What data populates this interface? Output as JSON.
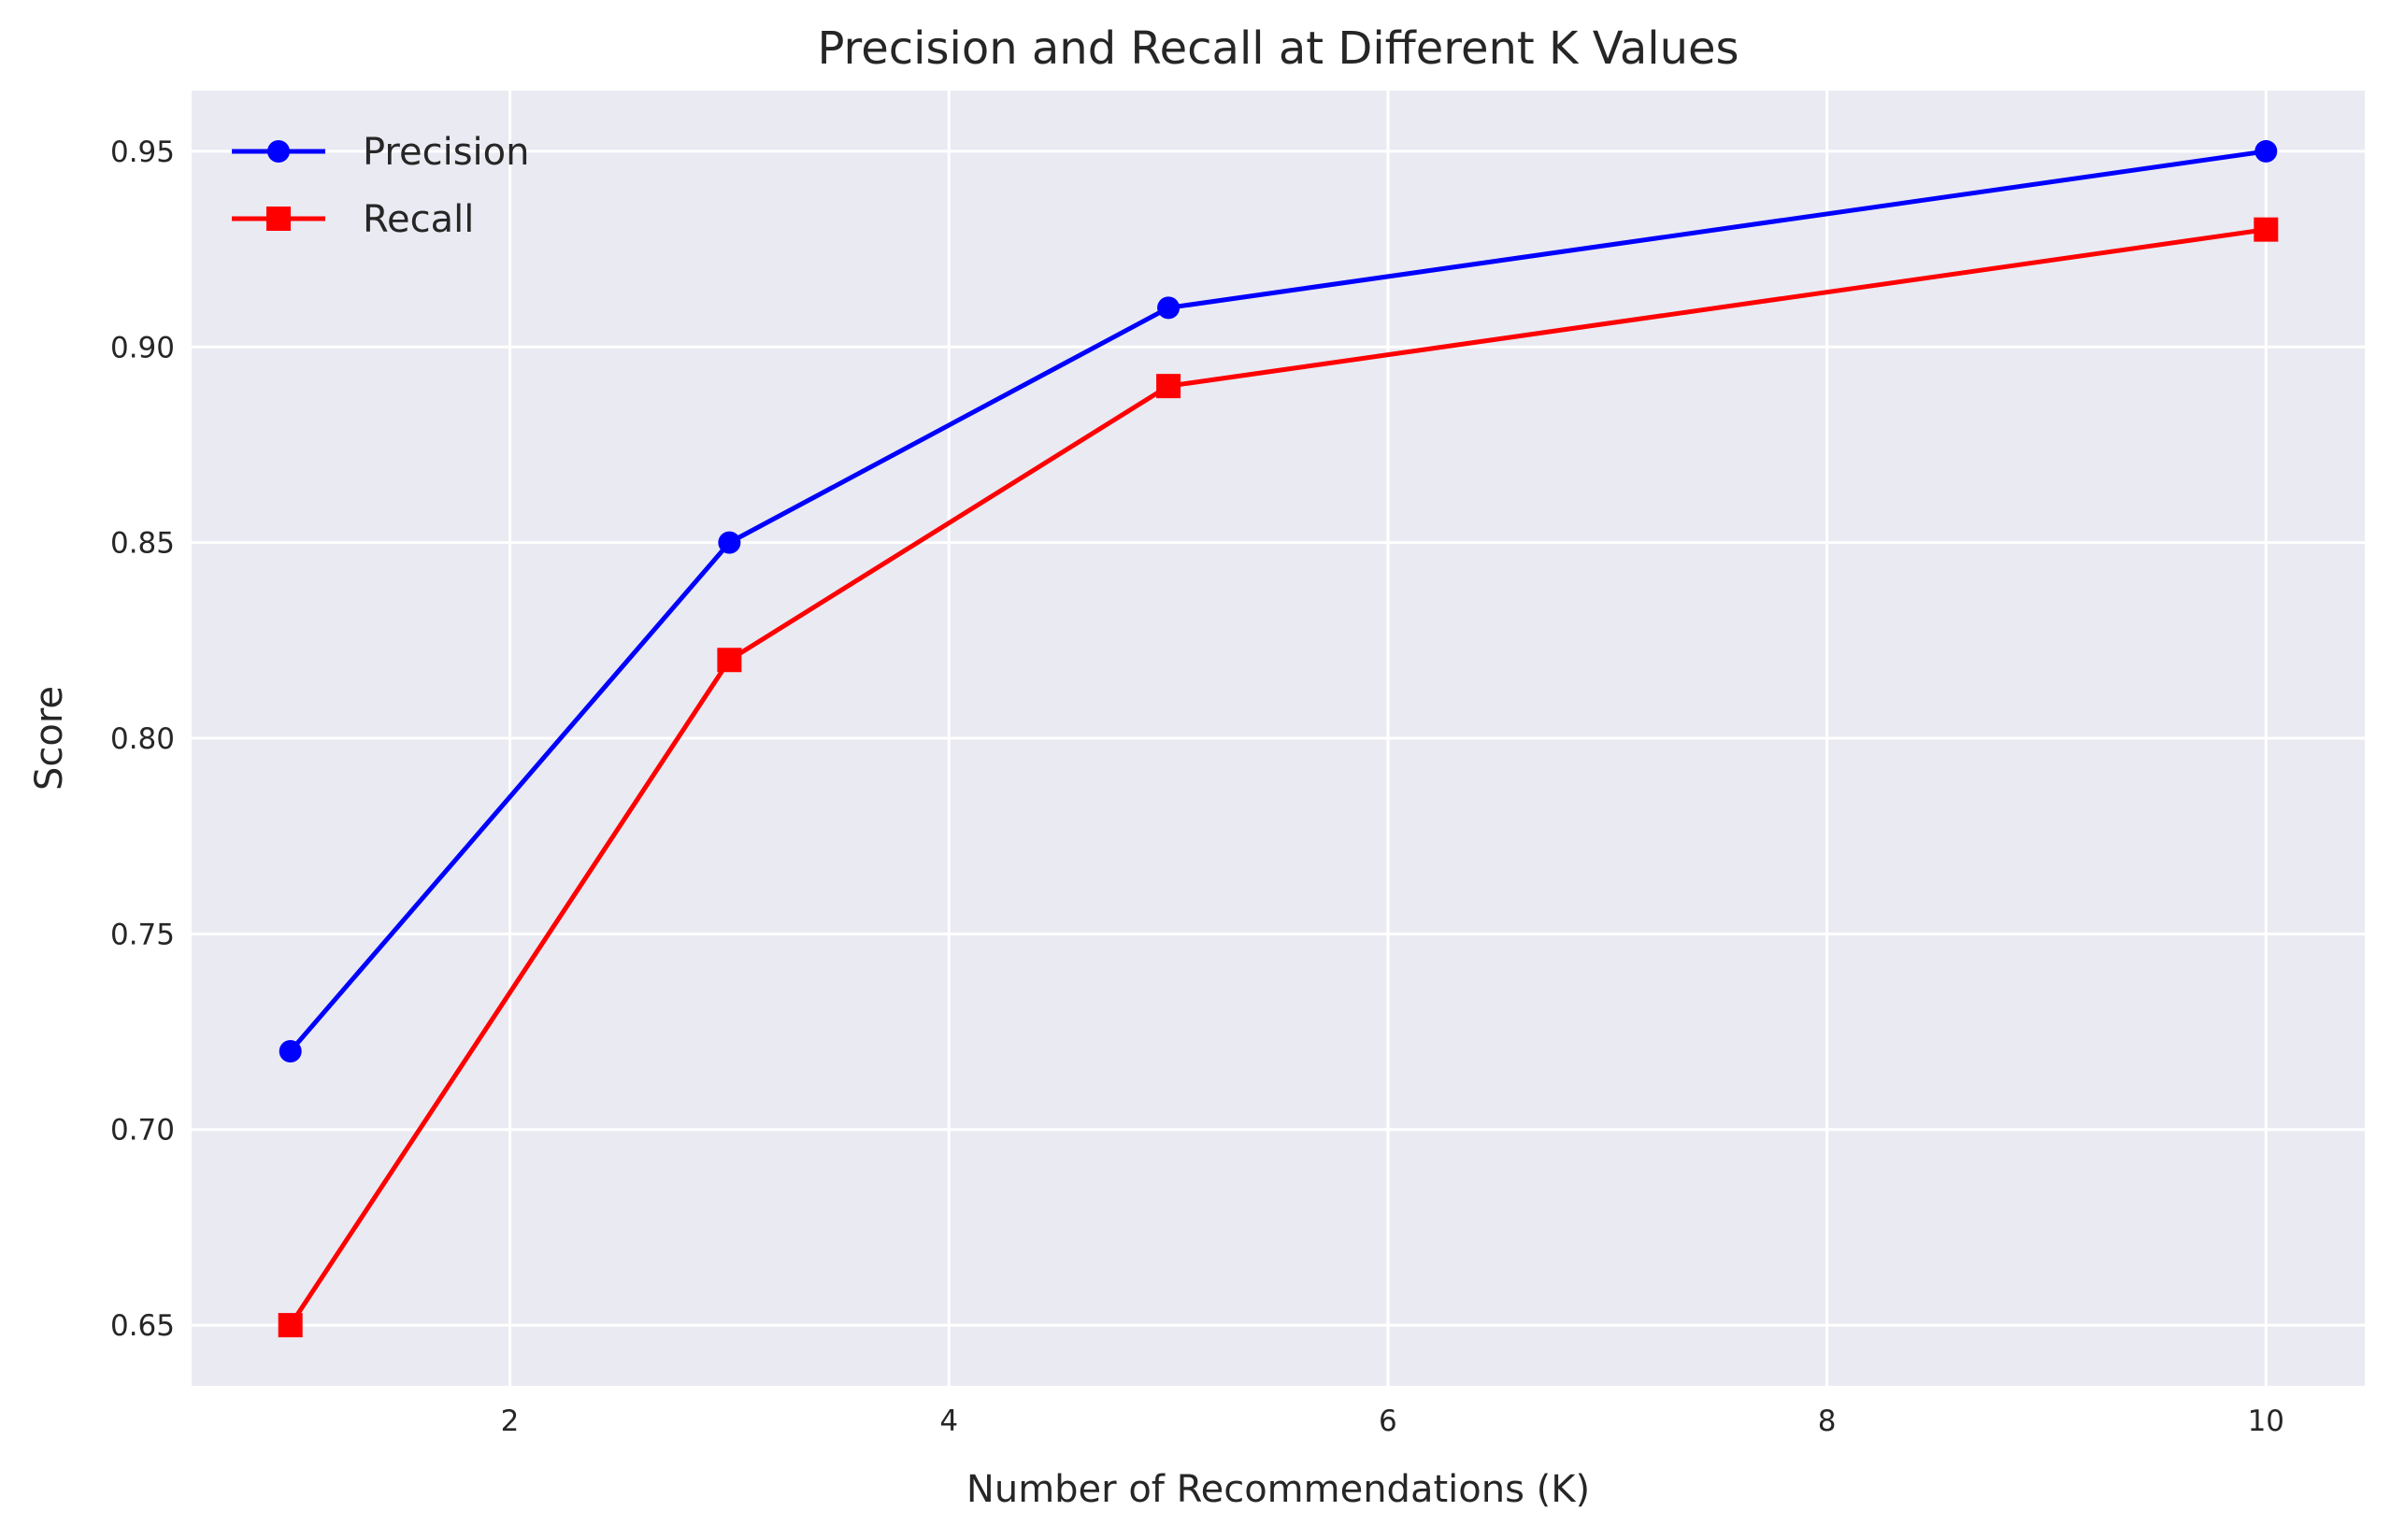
{
  "chart_data": {
    "type": "line",
    "title": "Precision and Recall at Different K Values",
    "xlabel": "Number of Recommendations (K)",
    "ylabel": "Score",
    "x": [
      1,
      3,
      5,
      10
    ],
    "series": [
      {
        "name": "Precision",
        "values": [
          0.72,
          0.85,
          0.91,
          0.95
        ],
        "color": "#0000ff",
        "marker": "circle"
      },
      {
        "name": "Recall",
        "values": [
          0.65,
          0.82,
          0.89,
          0.93
        ],
        "color": "#ff0000",
        "marker": "square"
      }
    ],
    "xlim": [
      0.55,
      10.45
    ],
    "ylim": [
      0.6345,
      0.9655
    ],
    "xticks": [
      2,
      4,
      6,
      8,
      10
    ],
    "xtick_labels": [
      "2",
      "4",
      "6",
      "8",
      "10"
    ],
    "yticks": [
      0.65,
      0.7,
      0.75,
      0.8,
      0.85,
      0.9,
      0.95
    ],
    "ytick_labels": [
      "0.65",
      "0.70",
      "0.75",
      "0.80",
      "0.85",
      "0.90",
      "0.95"
    ],
    "grid": true,
    "legend_position": "top-left",
    "background_color": "#eaeaf2",
    "grid_color": "#ffffff"
  }
}
